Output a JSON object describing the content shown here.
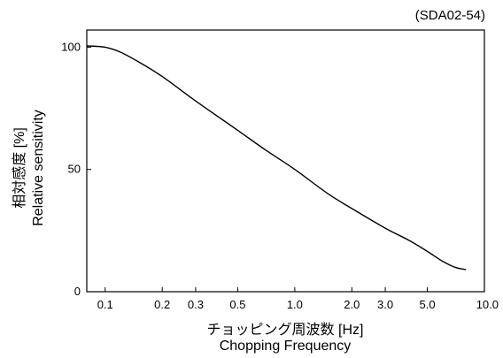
{
  "figure_code": "(SDA02-54)",
  "chart_data": {
    "type": "line",
    "xscale": "log",
    "xlim": [
      0.08,
      10.0
    ],
    "ylim": [
      0,
      107
    ],
    "x_ticks": [
      0.1,
      0.2,
      0.3,
      0.5,
      1.0,
      2.0,
      3.0,
      5.0,
      10.0
    ],
    "x_tick_labels": [
      "0.1",
      "0.2",
      "0.3",
      "0.5",
      "1.0",
      "2.0",
      "3.0",
      "5.0",
      "10.0"
    ],
    "y_ticks": [
      0,
      50,
      100
    ],
    "y_tick_labels": [
      "0",
      "50",
      "100"
    ],
    "xlabel": "チョッピング周波数 [Hz]",
    "xlabel_en": "Chopping Frequency",
    "ylabel": "相対感度 [%]",
    "ylabel_en": "Relative sensitivity",
    "grid": false,
    "series": [
      {
        "x": [
          0.08,
          0.1,
          0.12,
          0.15,
          0.2,
          0.3,
          0.5,
          0.7,
          1.0,
          1.5,
          2.0,
          3.0,
          4.0,
          5.0,
          6.0,
          7.0,
          8.0
        ],
        "y": [
          100.5,
          100,
          98,
          94,
          88,
          78,
          66,
          58,
          50,
          40,
          34,
          26,
          21,
          16.5,
          12.5,
          10,
          9
        ]
      }
    ]
  }
}
